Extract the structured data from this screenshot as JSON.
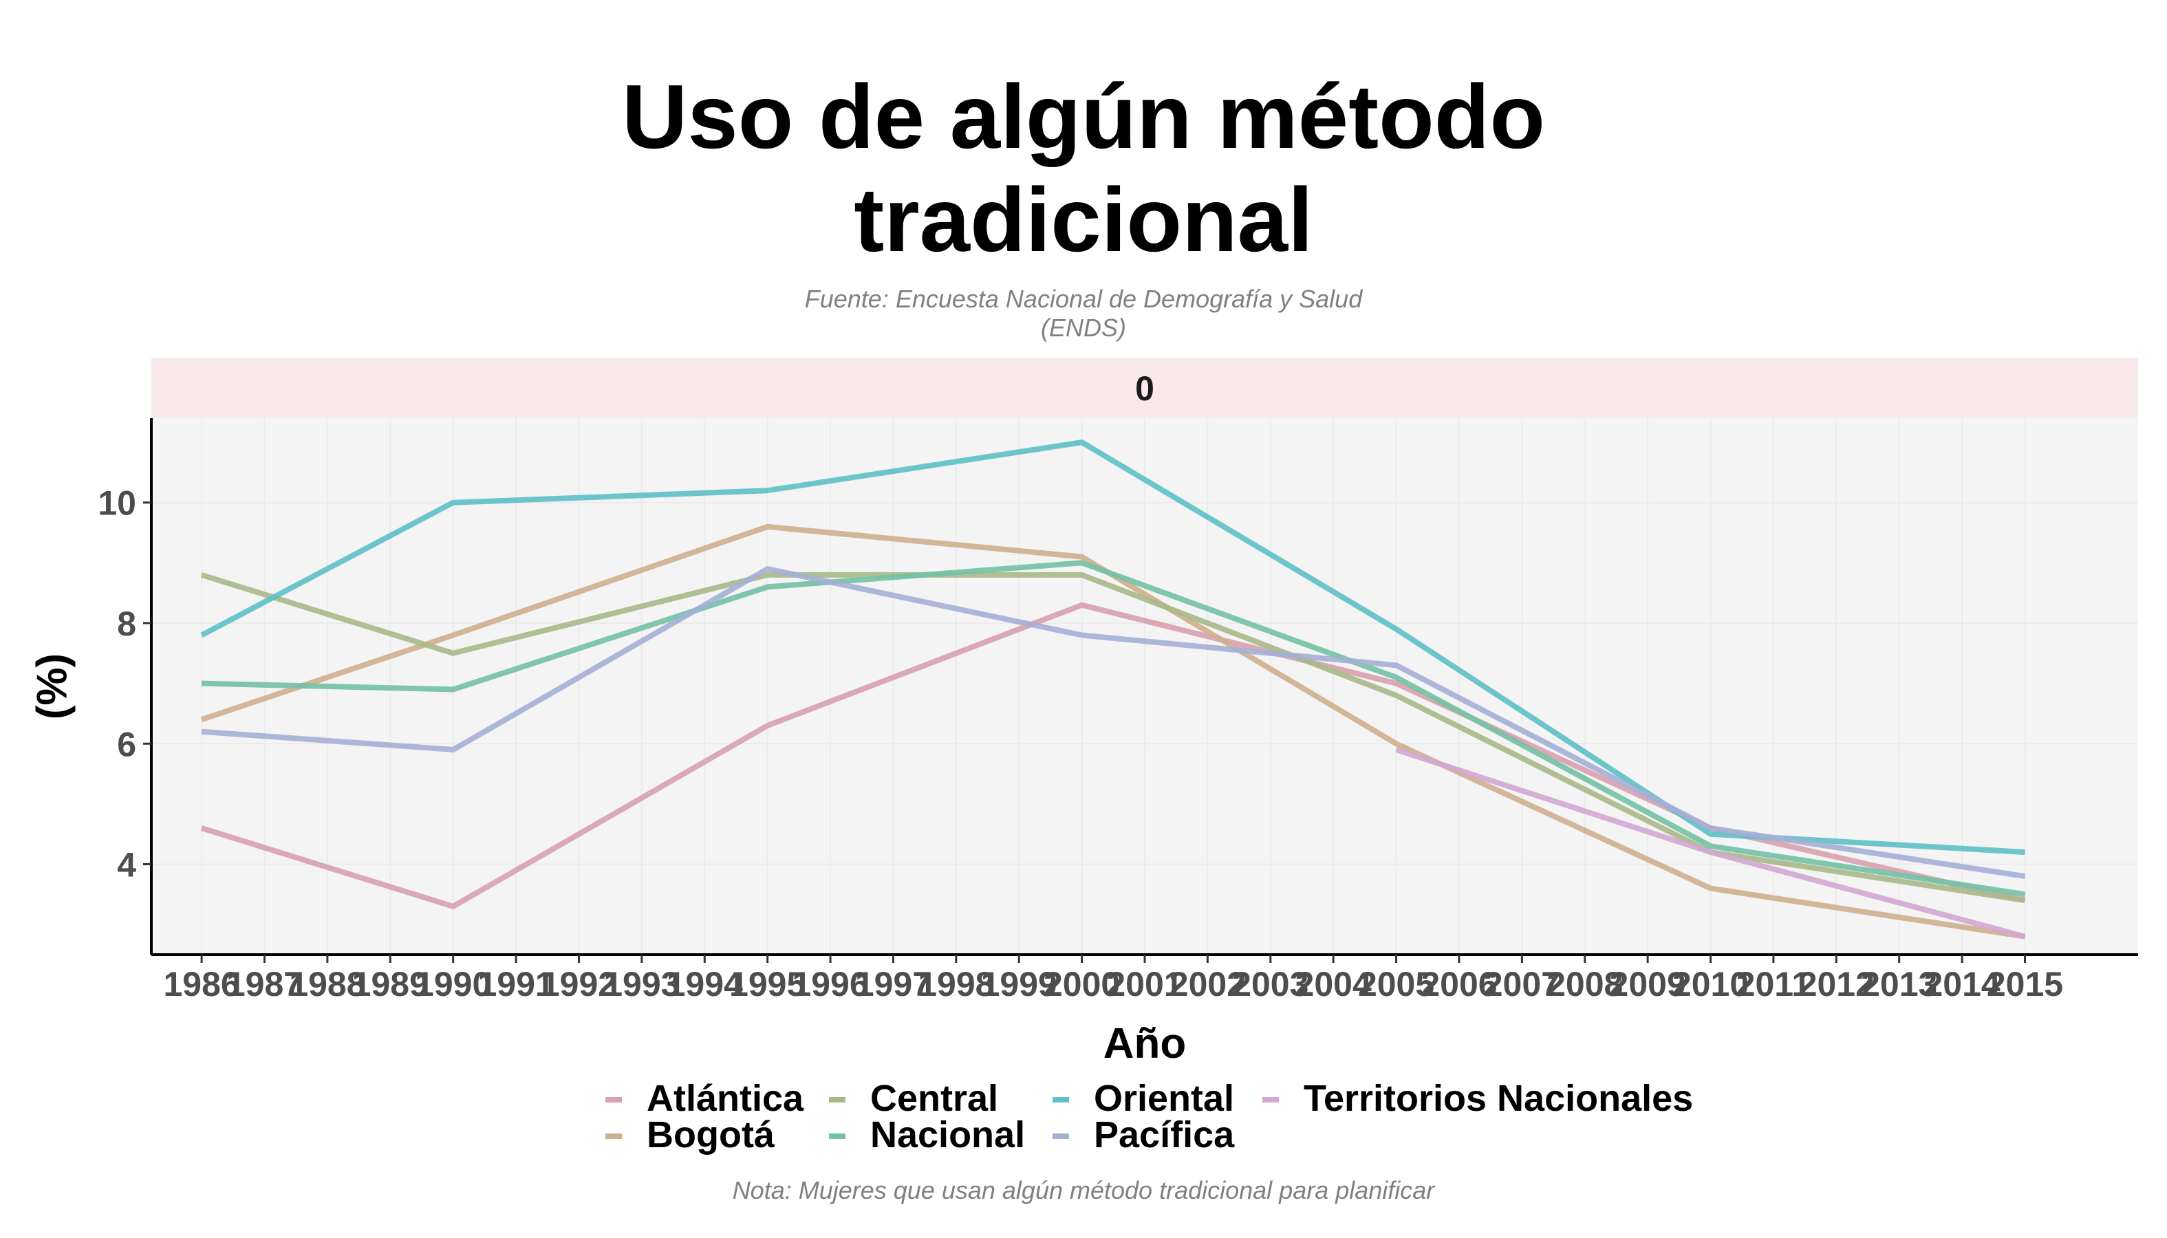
{
  "header": {
    "title": "Uso de algún método tradicional",
    "subtitle_line1": "Fuente: Encuesta Nacional de Demografía y Salud",
    "subtitle_line2": "(ENDS)",
    "caption": "Nota: Mujeres que usan algún método tradicional para planificar"
  },
  "chart_data": {
    "type": "line",
    "title": "Uso de algún método tradicional",
    "subtitle": "Fuente: Encuesta Nacional de Demografía y Salud (ENDS)",
    "caption": "Nota: Mujeres que usan algún método tradicional para planificar",
    "facet_label": "0",
    "xlabel": "Año",
    "ylabel": "(%)",
    "x_ticks": [
      1986,
      1987,
      1988,
      1989,
      1990,
      1991,
      1992,
      1993,
      1994,
      1995,
      1996,
      1997,
      1998,
      1999,
      2000,
      2001,
      2002,
      2003,
      2004,
      2005,
      2006,
      2007,
      2008,
      2009,
      2010,
      2011,
      2012,
      2013,
      2014,
      2015
    ],
    "y_ticks": [
      4,
      6,
      8,
      10
    ],
    "xlim": [
      1985.2,
      2016.8
    ],
    "ylim": [
      2.5,
      11.4
    ],
    "grid": true,
    "legend_position": "bottom",
    "series": [
      {
        "name": "Atlántica",
        "color": "#D7A1AE",
        "x": [
          1986,
          1990,
          1995,
          2000,
          2005,
          2010,
          2015
        ],
        "values": [
          4.6,
          3.3,
          6.3,
          8.3,
          7.0,
          4.6,
          3.4
        ]
      },
      {
        "name": "Bogotá",
        "color": "#CFAE8E",
        "x": [
          1986,
          1990,
          1995,
          2000,
          2005,
          2010,
          2015
        ],
        "values": [
          6.4,
          7.8,
          9.6,
          9.1,
          6.0,
          3.6,
          2.8
        ]
      },
      {
        "name": "Central",
        "color": "#A8B988",
        "x": [
          1986,
          1990,
          1995,
          2000,
          2005,
          2010,
          2015
        ],
        "values": [
          8.8,
          7.5,
          8.8,
          8.8,
          6.8,
          4.2,
          3.4
        ]
      },
      {
        "name": "Nacional",
        "color": "#72C1A5",
        "x": [
          1986,
          1990,
          1995,
          2000,
          2005,
          2010,
          2015
        ],
        "values": [
          7.0,
          6.9,
          8.6,
          9.0,
          7.1,
          4.3,
          3.5
        ]
      },
      {
        "name": "Oriental",
        "color": "#5EC0C8",
        "x": [
          1986,
          1990,
          1995,
          2000,
          2005,
          2010,
          2015
        ],
        "values": [
          7.8,
          10.0,
          10.2,
          11.0,
          7.9,
          4.5,
          4.2
        ]
      },
      {
        "name": "Pacífica",
        "color": "#A4AFD6",
        "x": [
          1986,
          1990,
          1995,
          2000,
          2005,
          2010,
          2015
        ],
        "values": [
          6.2,
          5.9,
          8.9,
          7.8,
          7.3,
          4.6,
          3.8
        ]
      },
      {
        "name": "Territorios Nacionales",
        "color": "#D2A7D2",
        "x": [
          2005,
          2010,
          2015
        ],
        "values": [
          5.9,
          4.2,
          2.8
        ]
      }
    ]
  }
}
